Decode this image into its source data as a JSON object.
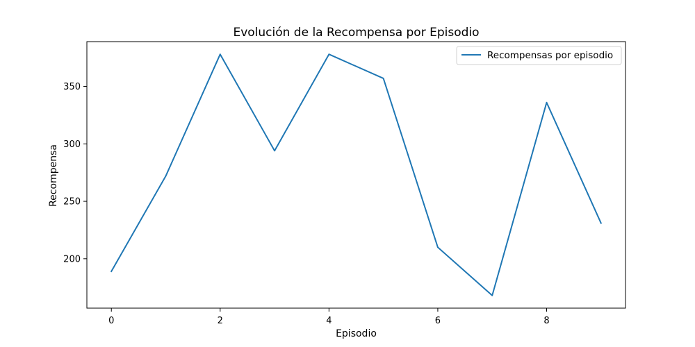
{
  "chart_data": {
    "type": "line",
    "title": "Evolución de la Recompensa por Episodio",
    "xlabel": "Episodio",
    "ylabel": "Recompensa",
    "x": [
      0,
      1,
      2,
      3,
      4,
      5,
      6,
      7,
      8,
      9
    ],
    "series": [
      {
        "name": "Recompensas por episodio",
        "color": "#1f77b4",
        "values": [
          189,
          272,
          378,
          294,
          378,
          357,
          210,
          168,
          336,
          231
        ]
      }
    ],
    "xlim": [
      -0.45,
      9.45
    ],
    "ylim": [
      157,
      389
    ],
    "xticks": [
      0,
      2,
      4,
      6,
      8
    ],
    "xtick_labels": [
      "0",
      "2",
      "4",
      "6",
      "8"
    ],
    "yticks": [
      200,
      250,
      300,
      350
    ],
    "ytick_labels": [
      "200",
      "250",
      "300",
      "350"
    ],
    "grid": false,
    "legend_position": "top-right"
  }
}
